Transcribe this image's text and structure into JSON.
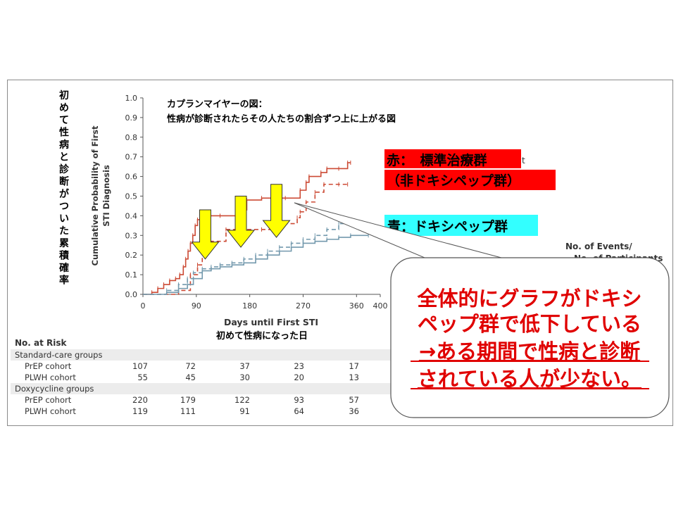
{
  "slide": {
    "vertical_caption": "初めて性病と診断がついた累積確率",
    "y_axis_label_line1": "Cumulative Probability of First",
    "y_axis_label_line2": "STI Diagnosis",
    "x_axis_label": "Days until First STI",
    "x_axis_caption_jp": "初めて性病になった日",
    "km_note_line1": "カプランマイヤーの図：",
    "km_note_line2": "性病が診断されたらその人たちの割合ずつ上に上がる図",
    "red_label_line1": "赤：　標準治療群",
    "red_label_line2": "（非ドキシペップ群）",
    "red_label_overflow": "t",
    "blue_label": "青：ドキシペップ群",
    "events_header_line1": "No. of Events/",
    "events_header_line2": "No. of Participants",
    "callout_line1": "全体的にグラフがドキシ",
    "callout_line2": "ペップ群で低下している",
    "callout_line3": "→ある期間で性病と診断",
    "callout_line4": "されている人が少ない。"
  },
  "risk_table": {
    "header": "No. at Risk",
    "groups": [
      {
        "label": "Standard-care groups",
        "rows": [
          {
            "label": "PrEP cohort",
            "values": [
              "107",
              "72",
              "37",
              "23",
              "17"
            ]
          },
          {
            "label": "PLWH cohort",
            "values": [
              "55",
              "45",
              "30",
              "20",
              "13"
            ]
          }
        ]
      },
      {
        "label": "Doxycycline groups",
        "rows": [
          {
            "label": "PrEP cohort",
            "values": [
              "220",
              "179",
              "122",
              "93",
              "57"
            ]
          },
          {
            "label": "PLWH cohort",
            "values": [
              "119",
              "111",
              "91",
              "64",
              "36"
            ]
          }
        ]
      }
    ]
  },
  "colors": {
    "red": "#cc4a34",
    "blue": "#7399ad",
    "arrow_fill": "#ffff00",
    "red_label_bg": "#ff0000",
    "blue_label_bg": "#33ffff",
    "callout_text": "#e00000"
  },
  "chart_data": {
    "type": "line",
    "subtype": "kaplan-meier step",
    "xlabel": "Days until First STI",
    "ylabel": "Cumulative Probability of First STI Diagnosis",
    "x_ticks": [
      0,
      90,
      180,
      270,
      360,
      400
    ],
    "x_tick_labels": [
      "0",
      "90",
      "180",
      "270",
      "360",
      "400"
    ],
    "y_ticks": [
      0.0,
      0.1,
      0.2,
      0.3,
      0.4,
      0.5,
      0.6,
      0.7,
      0.8,
      0.9,
      1.0
    ],
    "y_tick_labels": [
      "0.0",
      "0.1",
      "0.2",
      "0.3",
      "0.4",
      "0.5",
      "0.6",
      "0.7",
      "0.8",
      "0.9",
      "1.0"
    ],
    "xlim": [
      0,
      400
    ],
    "ylim": [
      0,
      1.0
    ],
    "series": [
      {
        "color": "red",
        "style": "solid",
        "x": [
          0,
          15,
          25,
          35,
          45,
          55,
          62,
          68,
          72,
          76,
          80,
          84,
          88,
          92,
          100,
          110,
          130,
          160,
          175,
          200,
          240,
          265,
          275,
          280,
          300,
          310,
          330,
          345,
          350
        ],
        "y": [
          0,
          0.01,
          0.03,
          0.05,
          0.07,
          0.08,
          0.1,
          0.14,
          0.18,
          0.22,
          0.26,
          0.3,
          0.35,
          0.38,
          0.39,
          0.4,
          0.4,
          0.43,
          0.48,
          0.49,
          0.49,
          0.53,
          0.57,
          0.6,
          0.62,
          0.64,
          0.64,
          0.67,
          0.67
        ]
      },
      {
        "color": "red",
        "style": "dashed",
        "x": [
          0,
          60,
          80,
          92,
          100,
          110,
          140,
          200,
          230,
          260,
          265,
          275,
          290,
          305,
          330,
          345
        ],
        "y": [
          0,
          0.02,
          0.1,
          0.15,
          0.22,
          0.27,
          0.33,
          0.33,
          0.36,
          0.39,
          0.42,
          0.47,
          0.52,
          0.56,
          0.56,
          0.56
        ]
      },
      {
        "color": "blue",
        "style": "solid",
        "x": [
          0,
          40,
          60,
          75,
          85,
          100,
          115,
          130,
          150,
          170,
          190,
          210,
          230,
          250,
          270,
          290,
          310,
          330,
          350,
          380
        ],
        "y": [
          0,
          0.01,
          0.03,
          0.05,
          0.08,
          0.12,
          0.13,
          0.14,
          0.15,
          0.16,
          0.18,
          0.2,
          0.22,
          0.24,
          0.26,
          0.27,
          0.28,
          0.29,
          0.3,
          0.3
        ]
      },
      {
        "color": "blue",
        "style": "dashed",
        "x": [
          0,
          40,
          60,
          75,
          85,
          100,
          115,
          130,
          150,
          170,
          190,
          210,
          230,
          250,
          270,
          290,
          310,
          330,
          350
        ],
        "y": [
          0,
          0.02,
          0.05,
          0.08,
          0.11,
          0.13,
          0.14,
          0.15,
          0.16,
          0.18,
          0.2,
          0.22,
          0.24,
          0.26,
          0.28,
          0.3,
          0.33,
          0.36,
          0.38
        ]
      }
    ],
    "annotations": [
      {
        "type": "down-arrow",
        "x": 105,
        "y_from": 0.43,
        "y_to": 0.18
      },
      {
        "type": "down-arrow",
        "x": 165,
        "y_from": 0.5,
        "y_to": 0.24
      },
      {
        "type": "down-arrow",
        "x": 225,
        "y_from": 0.56,
        "y_to": 0.29
      }
    ]
  }
}
